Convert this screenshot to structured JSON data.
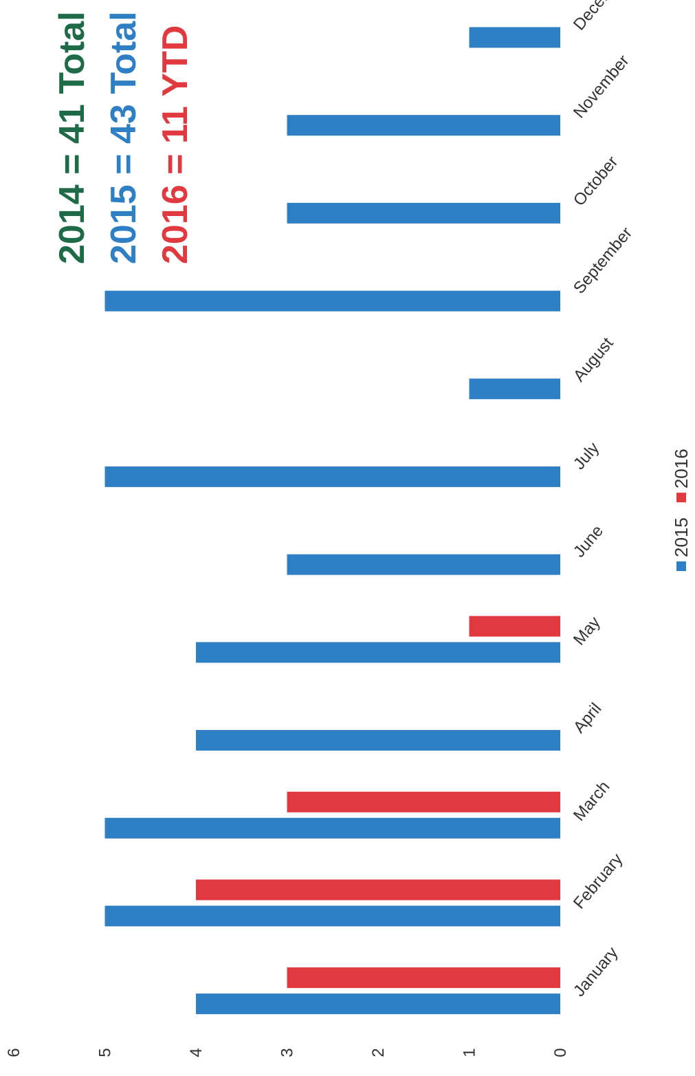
{
  "chart_data": {
    "type": "bar",
    "annotations": [
      {
        "text": "2014 = 41 Total",
        "color": "#1f6b47"
      },
      {
        "text": "2015 = 43 Total",
        "color": "#2f7fc5"
      },
      {
        "text": "2016 = 11 YTD",
        "color": "#e03a40"
      }
    ],
    "categories": [
      "January",
      "February",
      "March",
      "April",
      "May",
      "June",
      "July",
      "August",
      "September",
      "October",
      "November",
      "December"
    ],
    "series": [
      {
        "name": "2015",
        "color": "#2f7fc5",
        "values": [
          4,
          5,
          5,
          4,
          4,
          3,
          5,
          1,
          5,
          3,
          3,
          1
        ]
      },
      {
        "name": "2016",
        "color": "#e03a40",
        "values": [
          3,
          4,
          3,
          null,
          1,
          null,
          null,
          null,
          null,
          null,
          null,
          null
        ]
      }
    ],
    "ylim": [
      0,
      6
    ],
    "yticks": [
      0,
      1,
      2,
      3,
      4,
      5,
      6
    ],
    "grid": false,
    "legend": "bottom"
  }
}
